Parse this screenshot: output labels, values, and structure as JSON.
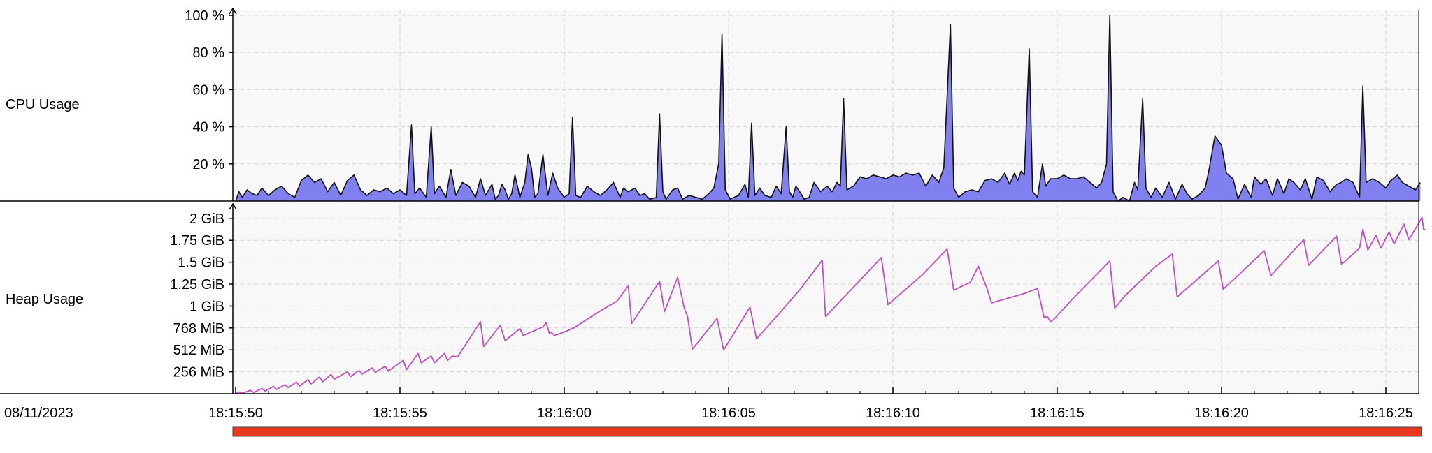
{
  "date_label": "08/11/2023",
  "colors": {
    "cpu_fill": "#8080f0",
    "cpu_line": "#111111",
    "heap_line": "#c050c0",
    "timeline_bar": "#e8391e",
    "plot_bg": "#f8f8f8",
    "grid": "#d4d4d4"
  },
  "time_ticks": [
    "18:15:50",
    "18:15:55",
    "18:16:00",
    "18:16:05",
    "18:16:10",
    "18:16:15",
    "18:16:20",
    "18:16:25"
  ],
  "chart_data": [
    {
      "type": "area",
      "name": "cpu-usage",
      "row_label": "CPU Usage",
      "y_unit": "%",
      "ylim": [
        0,
        100
      ],
      "y_ticks": [
        {
          "v": 20,
          "label": "20 %"
        },
        {
          "v": 40,
          "label": "40 %"
        },
        {
          "v": 60,
          "label": "60 %"
        },
        {
          "v": 80,
          "label": "80 %"
        },
        {
          "v": 100,
          "label": "100 %"
        }
      ],
      "x_unit": "seconds after 18:15:50",
      "xlim": [
        0,
        36.2
      ],
      "grid": true,
      "points": [
        [
          0.0,
          0
        ],
        [
          0.1,
          5
        ],
        [
          0.2,
          2
        ],
        [
          0.35,
          6
        ],
        [
          0.5,
          4
        ],
        [
          0.65,
          3
        ],
        [
          0.8,
          7
        ],
        [
          1.0,
          3
        ],
        [
          1.2,
          6
        ],
        [
          1.4,
          8
        ],
        [
          1.6,
          4
        ],
        [
          1.8,
          2
        ],
        [
          2.0,
          11
        ],
        [
          2.2,
          14
        ],
        [
          2.4,
          10
        ],
        [
          2.6,
          12
        ],
        [
          2.8,
          5
        ],
        [
          3.0,
          10
        ],
        [
          3.2,
          3
        ],
        [
          3.4,
          11
        ],
        [
          3.6,
          14
        ],
        [
          3.8,
          6
        ],
        [
          4.0,
          3
        ],
        [
          4.2,
          6
        ],
        [
          4.4,
          5
        ],
        [
          4.6,
          7
        ],
        [
          4.8,
          4
        ],
        [
          5.0,
          6
        ],
        [
          5.2,
          3
        ],
        [
          5.35,
          41
        ],
        [
          5.45,
          4
        ],
        [
          5.6,
          7
        ],
        [
          5.8,
          2
        ],
        [
          5.95,
          40
        ],
        [
          6.05,
          4
        ],
        [
          6.2,
          8
        ],
        [
          6.4,
          2
        ],
        [
          6.55,
          17
        ],
        [
          6.7,
          3
        ],
        [
          6.9,
          10
        ],
        [
          7.1,
          8
        ],
        [
          7.3,
          2
        ],
        [
          7.45,
          12
        ],
        [
          7.6,
          3
        ],
        [
          7.8,
          9
        ],
        [
          7.9,
          1
        ],
        [
          8.0,
          3
        ],
        [
          8.1,
          9
        ],
        [
          8.2,
          6
        ],
        [
          8.3,
          1
        ],
        [
          8.4,
          4
        ],
        [
          8.5,
          14
        ],
        [
          8.65,
          2
        ],
        [
          8.8,
          10
        ],
        [
          8.9,
          25
        ],
        [
          9.0,
          18
        ],
        [
          9.1,
          2
        ],
        [
          9.2,
          4
        ],
        [
          9.35,
          25
        ],
        [
          9.5,
          3
        ],
        [
          9.65,
          15
        ],
        [
          9.8,
          7
        ],
        [
          10.0,
          2
        ],
        [
          10.15,
          4
        ],
        [
          10.25,
          45
        ],
        [
          10.35,
          3
        ],
        [
          10.5,
          2
        ],
        [
          10.7,
          8
        ],
        [
          10.9,
          5
        ],
        [
          11.1,
          3
        ],
        [
          11.3,
          6
        ],
        [
          11.5,
          10
        ],
        [
          11.7,
          2
        ],
        [
          11.8,
          7
        ],
        [
          11.95,
          5
        ],
        [
          12.15,
          7
        ],
        [
          12.3,
          3
        ],
        [
          12.45,
          4
        ],
        [
          12.6,
          1
        ],
        [
          12.8,
          2
        ],
        [
          12.9,
          47
        ],
        [
          13.0,
          5
        ],
        [
          13.1,
          1
        ],
        [
          13.3,
          6
        ],
        [
          13.45,
          7
        ],
        [
          13.6,
          1
        ],
        [
          13.8,
          3
        ],
        [
          14.0,
          2
        ],
        [
          14.2,
          1
        ],
        [
          14.4,
          4
        ],
        [
          14.55,
          7
        ],
        [
          14.7,
          20
        ],
        [
          14.8,
          90
        ],
        [
          14.9,
          6
        ],
        [
          15.05,
          1
        ],
        [
          15.3,
          3
        ],
        [
          15.5,
          9
        ],
        [
          15.6,
          2
        ],
        [
          15.7,
          42
        ],
        [
          15.8,
          3
        ],
        [
          15.95,
          7
        ],
        [
          16.1,
          3
        ],
        [
          16.3,
          2
        ],
        [
          16.45,
          8
        ],
        [
          16.6,
          4
        ],
        [
          16.75,
          40
        ],
        [
          16.85,
          5
        ],
        [
          16.95,
          2
        ],
        [
          17.05,
          8
        ],
        [
          17.2,
          4
        ],
        [
          17.3,
          1
        ],
        [
          17.45,
          2
        ],
        [
          17.6,
          10
        ],
        [
          17.8,
          5
        ],
        [
          18.0,
          8
        ],
        [
          18.15,
          5
        ],
        [
          18.3,
          10
        ],
        [
          18.4,
          8
        ],
        [
          18.5,
          55
        ],
        [
          18.6,
          6
        ],
        [
          18.8,
          8
        ],
        [
          19.0,
          13
        ],
        [
          19.2,
          12
        ],
        [
          19.4,
          14
        ],
        [
          19.6,
          13
        ],
        [
          19.8,
          12
        ],
        [
          20.0,
          14
        ],
        [
          20.2,
          13
        ],
        [
          20.4,
          15
        ],
        [
          20.6,
          14
        ],
        [
          20.8,
          15
        ],
        [
          21.0,
          8
        ],
        [
          21.2,
          14
        ],
        [
          21.4,
          10
        ],
        [
          21.55,
          18
        ],
        [
          21.75,
          95
        ],
        [
          21.85,
          7
        ],
        [
          22.0,
          2
        ],
        [
          22.2,
          5
        ],
        [
          22.4,
          6
        ],
        [
          22.6,
          5
        ],
        [
          22.8,
          11
        ],
        [
          23.0,
          12
        ],
        [
          23.2,
          10
        ],
        [
          23.4,
          15
        ],
        [
          23.55,
          9
        ],
        [
          23.7,
          15
        ],
        [
          23.8,
          11
        ],
        [
          23.9,
          16
        ],
        [
          24.0,
          14
        ],
        [
          24.15,
          82
        ],
        [
          24.25,
          5
        ],
        [
          24.4,
          2
        ],
        [
          24.55,
          20
        ],
        [
          24.65,
          8
        ],
        [
          24.8,
          12
        ],
        [
          25.0,
          12
        ],
        [
          25.2,
          14
        ],
        [
          25.4,
          12
        ],
        [
          25.6,
          12
        ],
        [
          25.8,
          13
        ],
        [
          26.0,
          10
        ],
        [
          26.2,
          7
        ],
        [
          26.35,
          10
        ],
        [
          26.5,
          20
        ],
        [
          26.6,
          100
        ],
        [
          26.7,
          5
        ],
        [
          26.85,
          0
        ],
        [
          27.0,
          2
        ],
        [
          27.2,
          0
        ],
        [
          27.35,
          10
        ],
        [
          27.45,
          6
        ],
        [
          27.6,
          55
        ],
        [
          27.7,
          7
        ],
        [
          27.85,
          2
        ],
        [
          28.0,
          7
        ],
        [
          28.2,
          2
        ],
        [
          28.4,
          10
        ],
        [
          28.6,
          1
        ],
        [
          28.8,
          9
        ],
        [
          28.95,
          4
        ],
        [
          29.1,
          1
        ],
        [
          29.3,
          3
        ],
        [
          29.5,
          7
        ],
        [
          29.6,
          15
        ],
        [
          29.8,
          35
        ],
        [
          30.0,
          30
        ],
        [
          30.15,
          15
        ],
        [
          30.35,
          12
        ],
        [
          30.5,
          1
        ],
        [
          30.7,
          9
        ],
        [
          30.9,
          2
        ],
        [
          31.0,
          13
        ],
        [
          31.2,
          9
        ],
        [
          31.35,
          12
        ],
        [
          31.55,
          3
        ],
        [
          31.7,
          12
        ],
        [
          31.9,
          4
        ],
        [
          32.05,
          12
        ],
        [
          32.2,
          10
        ],
        [
          32.4,
          6
        ],
        [
          32.55,
          12
        ],
        [
          32.75,
          1
        ],
        [
          32.9,
          13
        ],
        [
          33.1,
          11
        ],
        [
          33.3,
          5
        ],
        [
          33.5,
          9
        ],
        [
          33.65,
          10
        ],
        [
          33.8,
          12
        ],
        [
          34.0,
          10
        ],
        [
          34.2,
          2
        ],
        [
          34.3,
          62
        ],
        [
          34.4,
          10
        ],
        [
          34.6,
          12
        ],
        [
          34.8,
          10
        ],
        [
          35.0,
          7
        ],
        [
          35.15,
          11
        ],
        [
          35.35,
          14
        ],
        [
          35.5,
          10
        ],
        [
          35.7,
          8
        ],
        [
          35.9,
          6
        ],
        [
          36.05,
          10
        ]
      ]
    },
    {
      "type": "line",
      "name": "heap-usage",
      "row_label": "Heap Usage",
      "y_unit": "MiB",
      "ylim": [
        0,
        2120
      ],
      "y_ticks": [
        {
          "v": 256,
          "label": "256 MiB"
        },
        {
          "v": 512,
          "label": "512 MiB"
        },
        {
          "v": 768,
          "label": "768 MiB"
        },
        {
          "v": 1024,
          "label": "1 GiB"
        },
        {
          "v": 1280,
          "label": "1.25 GiB"
        },
        {
          "v": 1536,
          "label": "1.5 GiB"
        },
        {
          "v": 1792,
          "label": "1.75 GiB"
        },
        {
          "v": 2048,
          "label": "2 GiB"
        }
      ],
      "x_unit": "seconds after 18:15:50",
      "xlim": [
        0,
        36.2
      ],
      "grid": true,
      "points": [
        [
          0.0,
          0
        ],
        [
          0.1,
          20
        ],
        [
          0.2,
          5
        ],
        [
          0.45,
          40
        ],
        [
          0.55,
          15
        ],
        [
          0.8,
          60
        ],
        [
          0.9,
          30
        ],
        [
          1.15,
          85
        ],
        [
          1.25,
          50
        ],
        [
          1.5,
          105
        ],
        [
          1.6,
          70
        ],
        [
          1.85,
          135
        ],
        [
          1.95,
          90
        ],
        [
          2.2,
          165
        ],
        [
          2.3,
          115
        ],
        [
          2.55,
          195
        ],
        [
          2.65,
          140
        ],
        [
          2.9,
          225
        ],
        [
          3.0,
          170
        ],
        [
          3.4,
          255
        ],
        [
          3.5,
          200
        ],
        [
          3.75,
          270
        ],
        [
          3.85,
          230
        ],
        [
          4.15,
          300
        ],
        [
          4.25,
          250
        ],
        [
          4.55,
          320
        ],
        [
          4.65,
          265
        ],
        [
          5.1,
          390
        ],
        [
          5.2,
          280
        ],
        [
          5.55,
          470
        ],
        [
          5.65,
          360
        ],
        [
          5.95,
          440
        ],
        [
          6.05,
          360
        ],
        [
          6.35,
          470
        ],
        [
          6.45,
          390
        ],
        [
          6.6,
          440
        ],
        [
          6.75,
          430
        ],
        [
          7.45,
          840
        ],
        [
          7.55,
          550
        ],
        [
          8.05,
          800
        ],
        [
          8.2,
          620
        ],
        [
          8.65,
          760
        ],
        [
          8.75,
          680
        ],
        [
          9.35,
          780
        ],
        [
          9.45,
          830
        ],
        [
          9.55,
          700
        ],
        [
          9.6,
          720
        ],
        [
          9.7,
          680
        ],
        [
          10.0,
          720
        ],
        [
          10.3,
          770
        ],
        [
          10.7,
          870
        ],
        [
          11.15,
          980
        ],
        [
          11.6,
          1080
        ],
        [
          11.95,
          1260
        ],
        [
          12.05,
          820
        ],
        [
          12.9,
          1310
        ],
        [
          13.05,
          960
        ],
        [
          13.45,
          1360
        ],
        [
          13.65,
          1000
        ],
        [
          13.75,
          900
        ],
        [
          13.9,
          520
        ],
        [
          14.65,
          880
        ],
        [
          14.85,
          510
        ],
        [
          15.65,
          1010
        ],
        [
          15.85,
          640
        ],
        [
          16.5,
          920
        ],
        [
          17.2,
          1230
        ],
        [
          17.85,
          1560
        ],
        [
          17.95,
          900
        ],
        [
          19.65,
          1590
        ],
        [
          19.85,
          1040
        ],
        [
          20.9,
          1390
        ],
        [
          21.3,
          1550
        ],
        [
          21.65,
          1690
        ],
        [
          21.85,
          1210
        ],
        [
          22.35,
          1300
        ],
        [
          22.6,
          1490
        ],
        [
          22.85,
          1240
        ],
        [
          23.0,
          1060
        ],
        [
          24.0,
          1170
        ],
        [
          24.4,
          1230
        ],
        [
          24.6,
          890
        ],
        [
          24.7,
          900
        ],
        [
          24.8,
          840
        ],
        [
          24.9,
          870
        ],
        [
          25.5,
          1120
        ],
        [
          26.6,
          1550
        ],
        [
          26.75,
          1000
        ],
        [
          27.05,
          1140
        ],
        [
          28.0,
          1490
        ],
        [
          28.5,
          1630
        ],
        [
          28.65,
          1130
        ],
        [
          29.9,
          1550
        ],
        [
          30.05,
          1220
        ],
        [
          31.3,
          1670
        ],
        [
          31.5,
          1380
        ],
        [
          32.5,
          1800
        ],
        [
          32.65,
          1500
        ],
        [
          33.5,
          1840
        ],
        [
          33.65,
          1510
        ],
        [
          34.2,
          1700
        ],
        [
          34.3,
          1920
        ],
        [
          34.45,
          1680
        ],
        [
          34.7,
          1850
        ],
        [
          34.85,
          1700
        ],
        [
          35.1,
          1890
        ],
        [
          35.25,
          1750
        ],
        [
          35.55,
          1980
        ],
        [
          35.7,
          1800
        ],
        [
          36.0,
          1990
        ],
        [
          36.1,
          2060
        ],
        [
          36.15,
          1920
        ],
        [
          36.2,
          1920
        ]
      ]
    }
  ]
}
